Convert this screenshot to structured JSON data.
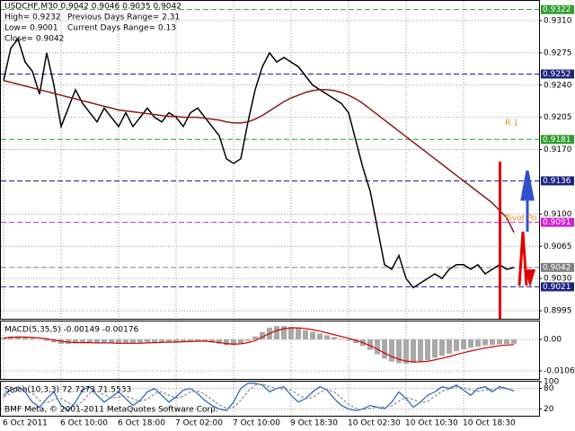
{
  "chart_data": [
    {
      "type": "line",
      "title": "USDCHF,M30  0.9042 0.9046 0.9035 0.9042",
      "info": [
        "High= 0.9232",
        "Previous Days Range= 2.31",
        "Low= 0.9001",
        "Current Days Range= 0.13",
        "Close= 0.9042"
      ],
      "pivot_labels": [
        "R 1",
        "Pivot Po"
      ],
      "copyright": "BMF Meta, © 2001-2011 MetaQuotes Software Corp.",
      "categories": [
        "6 Oct 2011",
        null,
        null,
        null,
        null,
        null,
        null,
        null,
        "6 Oct 10:00",
        null,
        null,
        null,
        null,
        null,
        null,
        null,
        "6 Oct 18:00",
        null,
        null,
        null,
        null,
        null,
        null,
        null,
        "7 Oct 02:00",
        null,
        null,
        null,
        null,
        null,
        null,
        null,
        "7 Oct 10:00",
        null,
        null,
        null,
        null,
        null,
        null,
        null,
        "9 Oct 18:30",
        null,
        null,
        null,
        null,
        null,
        null,
        null,
        "10 Oct 02:30",
        null,
        null,
        null,
        null,
        null,
        null,
        null,
        "10 Oct 10:30",
        null,
        null,
        null,
        null,
        null,
        null,
        null,
        "10 Oct 18:30",
        null,
        null,
        null,
        null,
        null,
        null,
        null
      ],
      "ylim": [
        0.89863,
        0.93314
      ],
      "yticks": [
        {
          "value": 0.931,
          "label": "0.9310"
        },
        {
          "value": 0.9275,
          "label": "0.9275"
        },
        {
          "value": 0.924,
          "label": "0.9240"
        },
        {
          "value": 0.9205,
          "label": "0.9205"
        },
        {
          "value": 0.917,
          "label": "0.9170"
        },
        {
          "value": 0.91,
          "label": "0.9100"
        },
        {
          "value": 0.9065,
          "label": "0.9065"
        },
        {
          "value": 0.903,
          "label": "0.9030"
        },
        {
          "value": 0.8995,
          "label": "0.8995"
        }
      ],
      "levels": [
        {
          "value": 0.9322,
          "label": "0.9322",
          "color": "#2e9e2e"
        },
        {
          "value": 0.9252,
          "label": "0.9252",
          "color": "#1a237e"
        },
        {
          "value": 0.9181,
          "label": "0.9181",
          "color": "#2e9e2e"
        },
        {
          "value": 0.9136,
          "label": "0.9136",
          "color": "#1a237e"
        },
        {
          "value": 0.9091,
          "label": "0.9091",
          "color": "#d01fd0"
        },
        {
          "value": 0.9042,
          "label": "0.9042",
          "color": "#808080"
        },
        {
          "value": 0.9021,
          "label": "0.9021",
          "color": "#1a237e"
        }
      ],
      "grid": true,
      "series": [
        {
          "type": "line",
          "color": "#000000",
          "values": [
            0.9245,
            0.928,
            0.929,
            0.9265,
            0.9255,
            0.923,
            0.9275,
            0.924,
            0.9195,
            0.9215,
            0.9235,
            0.922,
            0.921,
            0.92,
            0.9215,
            0.9205,
            0.9195,
            0.921,
            0.9195,
            0.9205,
            0.9215,
            0.9205,
            0.92,
            0.921,
            0.9205,
            0.9195,
            0.921,
            0.9215,
            0.9205,
            0.9195,
            0.9185,
            0.916,
            0.9155,
            0.916,
            0.92,
            0.9235,
            0.926,
            0.9275,
            0.9265,
            0.927,
            0.9265,
            0.926,
            0.925,
            0.924,
            0.9235,
            0.923,
            0.9225,
            0.922,
            0.921,
            0.918,
            0.915,
            0.9125,
            0.9085,
            0.9045,
            0.904,
            0.9055,
            0.903,
            0.902,
            0.9025,
            0.903,
            0.9035,
            0.903,
            0.904,
            0.9045,
            0.9045,
            0.904,
            0.9045,
            0.9035,
            0.904,
            0.9045,
            0.904,
            0.9042
          ]
        },
        {
          "type": "line",
          "color": "#8b1a1a",
          "values": [
            0.9245,
            0.9243,
            0.9241,
            0.9239,
            0.9237,
            0.9235,
            0.9233,
            0.9231,
            0.9229,
            0.9227,
            0.9225,
            0.9223,
            0.9221,
            0.9219,
            0.9217,
            0.9215,
            0.9213,
            0.9212,
            0.9211,
            0.921,
            0.9209,
            0.9208,
            0.9207,
            0.9206,
            0.9206,
            0.9205,
            0.9205,
            0.9205,
            0.9204,
            0.9203,
            0.9202,
            0.92,
            0.9199,
            0.9199,
            0.92,
            0.9203,
            0.9207,
            0.9212,
            0.9217,
            0.9222,
            0.9226,
            0.9229,
            0.9232,
            0.9234,
            0.9235,
            0.9235,
            0.9234,
            0.9232,
            0.9229,
            0.9225,
            0.922,
            0.9214,
            0.9208,
            0.9202,
            0.9196,
            0.919,
            0.9184,
            0.9178,
            0.9172,
            0.9166,
            0.916,
            0.9154,
            0.9148,
            0.9142,
            0.9136,
            0.913,
            0.9124,
            0.9118,
            0.9112,
            0.9104,
            0.9096,
            0.908
          ]
        }
      ]
    },
    {
      "type": "bar",
      "title": "MACD(5,35,5) -0.00149 -0.00176",
      "ylim": [
        -0.01335,
        0.00607
      ],
      "yticks": [
        {
          "value": 0,
          "label": "0.00"
        },
        -0.01062
      ],
      "grid": true,
      "series": [
        {
          "type": "bar",
          "color": "#a9a9a9",
          "values": [
            0.0005,
            0.001,
            0.001,
            0.0008,
            0.0005,
            0,
            -0.0005,
            -0.001,
            -0.0015,
            -0.0015,
            -0.0012,
            -0.001,
            -0.0012,
            -0.0013,
            -0.0012,
            -0.0013,
            -0.0015,
            -0.0014,
            -0.0013,
            -0.0012,
            -0.001,
            -0.0009,
            -0.0009,
            -0.0008,
            -0.0008,
            -0.0007,
            -0.0006,
            -0.0005,
            -0.0007,
            -0.001,
            -0.0015,
            -0.002,
            -0.002,
            -0.0015,
            -0.0005,
            0.001,
            0.0025,
            0.004,
            0.0045,
            0.0045,
            0.0042,
            0.0038,
            0.0032,
            0.0026,
            0.002,
            0.0014,
            0.0008,
            0.0002,
            -0.0004,
            -0.0012,
            -0.0022,
            -0.0035,
            -0.005,
            -0.0065,
            -0.0075,
            -0.008,
            -0.0082,
            -0.008,
            -0.0075,
            -0.007,
            -0.0062,
            -0.0055,
            -0.0048,
            -0.004,
            -0.0034,
            -0.0028,
            -0.0024,
            -0.002,
            -0.0018,
            -0.0016,
            -0.0015,
            -0.00149
          ]
        },
        {
          "type": "line",
          "color": "#d00000",
          "values": [
            0.0005,
            0.0007,
            0.0008,
            0.0008,
            0.0007,
            0.0005,
            0.0002,
            -0.0002,
            -0.0006,
            -0.0009,
            -0.0011,
            -0.0011,
            -0.0011,
            -0.0012,
            -0.0012,
            -0.0012,
            -0.0013,
            -0.0013,
            -0.0013,
            -0.0013,
            -0.0012,
            -0.0011,
            -0.001,
            -0.0009,
            -0.0009,
            -0.0008,
            -0.0007,
            -0.0006,
            -0.0006,
            -0.0008,
            -0.001,
            -0.0014,
            -0.0016,
            -0.0015,
            -0.0011,
            -0.0004,
            0.0008,
            0.002,
            0.003,
            0.0036,
            0.0039,
            0.0039,
            0.0037,
            0.0033,
            0.0028,
            0.0022,
            0.0016,
            0.001,
            0.0004,
            -0.0003,
            -0.0011,
            -0.0021,
            -0.0033,
            -0.0046,
            -0.0058,
            -0.0067,
            -0.0073,
            -0.0076,
            -0.0076,
            -0.0074,
            -0.0069,
            -0.0064,
            -0.0058,
            -0.0051,
            -0.0045,
            -0.0039,
            -0.0034,
            -0.0029,
            -0.0025,
            -0.0021,
            -0.0019,
            -0.00176
          ]
        }
      ]
    },
    {
      "type": "line",
      "title": "Stoch(10,3,3) 72.7273 71.5533",
      "ylim": [
        0,
        100
      ],
      "yticks": [
        100,
        80,
        20
      ],
      "grid": true,
      "series": [
        {
          "type": "line",
          "color": "#1f5fbf",
          "values": [
            60,
            75,
            85,
            70,
            40,
            25,
            50,
            70,
            30,
            15,
            40,
            75,
            85,
            60,
            40,
            55,
            70,
            50,
            30,
            45,
            70,
            80,
            60,
            40,
            55,
            75,
            80,
            65,
            45,
            30,
            20,
            15,
            40,
            80,
            95,
            95,
            90,
            70,
            80,
            85,
            60,
            40,
            50,
            70,
            85,
            75,
            50,
            30,
            20,
            15,
            20,
            30,
            25,
            20,
            40,
            70,
            50,
            25,
            40,
            60,
            70,
            85,
            80,
            90,
            75,
            60,
            80,
            85,
            70,
            85,
            80,
            72.7273
          ]
        },
        {
          "type": "line",
          "color": "#8a8a8a",
          "dashed": true,
          "values": [
            55,
            65,
            75,
            77,
            65,
            45,
            38,
            48,
            50,
            38,
            28,
            43,
            67,
            73,
            62,
            52,
            55,
            58,
            50,
            42,
            48,
            65,
            70,
            60,
            52,
            57,
            70,
            73,
            63,
            47,
            32,
            22,
            25,
            45,
            72,
            90,
            93,
            85,
            80,
            78,
            75,
            62,
            50,
            53,
            68,
            77,
            70,
            52,
            33,
            22,
            18,
            22,
            25,
            25,
            28,
            43,
            53,
            48,
            38,
            42,
            57,
            72,
            78,
            85,
            82,
            75,
            72,
            75,
            78,
            80,
            79,
            71.5533
          ]
        }
      ]
    }
  ]
}
